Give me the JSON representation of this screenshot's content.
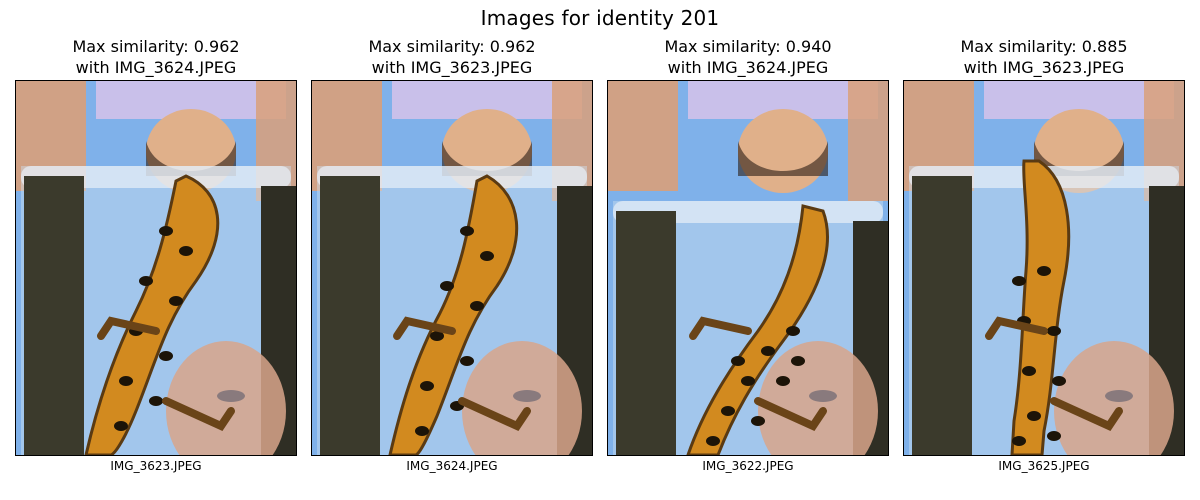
{
  "figure": {
    "title": "Images for identity 201"
  },
  "panels": [
    {
      "title_line1": "Max similarity: 0.962",
      "title_line2": "with IMG_3624.JPEG",
      "caption": "IMG_3623.JPEG",
      "image_description": "salamander photo, orange belly with black spots"
    },
    {
      "title_line1": "Max similarity: 0.962",
      "title_line2": "with IMG_3623.JPEG",
      "caption": "IMG_3624.JPEG",
      "image_description": "salamander photo, orange belly with black spots"
    },
    {
      "title_line1": "Max similarity: 0.940",
      "title_line2": "with IMG_3624.JPEG",
      "caption": "IMG_3622.JPEG",
      "image_description": "salamander photo, orange belly with black spots"
    },
    {
      "title_line1": "Max similarity: 0.885",
      "title_line2": "with IMG_3623.JPEG",
      "caption": "IMG_3625.JPEG",
      "image_description": "salamander photo, orange belly with black spots"
    }
  ],
  "colors": {
    "sky": "#7fb1ea",
    "belly": "#d28a1f",
    "spots": "#1c1408",
    "glass": "#cfe0f0",
    "skin": "#d9a07a"
  }
}
